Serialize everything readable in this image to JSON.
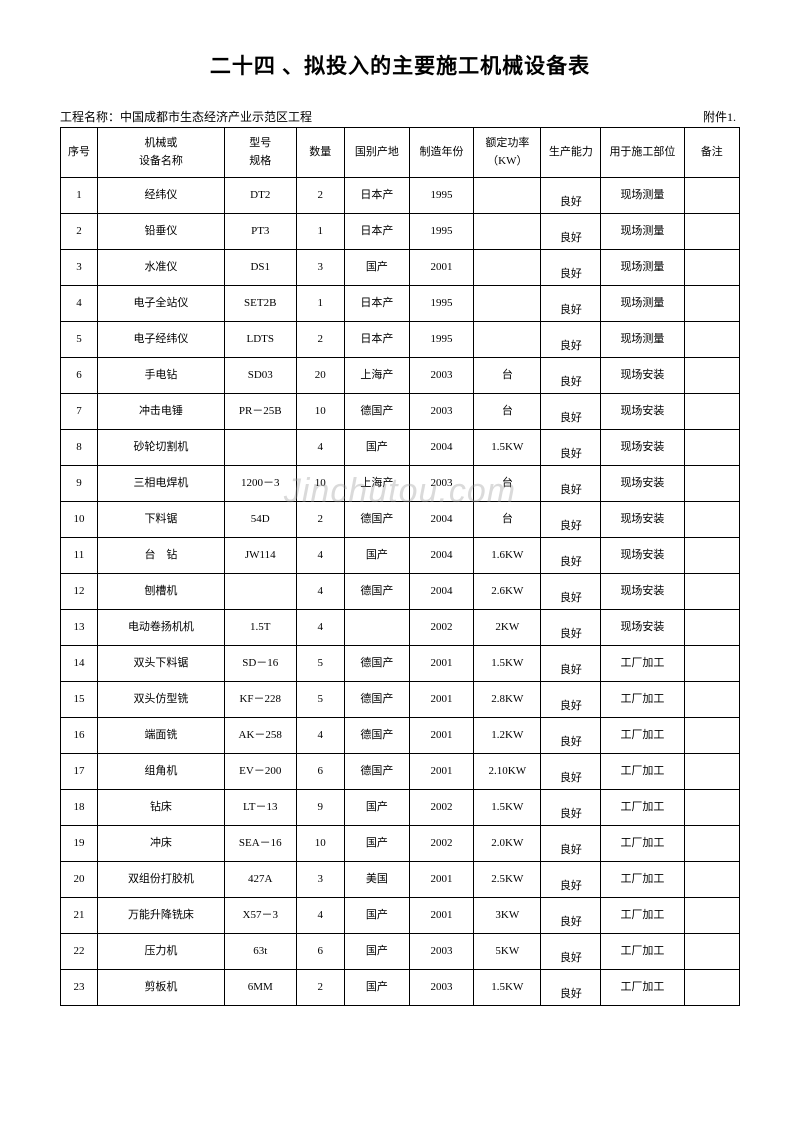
{
  "title": "二十四 、拟投入的主要施工机械设备表",
  "project_label": "工程名称：中国成都市生态经济产业示范区工程",
  "appendix": "附件1.",
  "watermark": "Jinchutou.com",
  "columns": {
    "seq": "序号",
    "name_l1": "机械或",
    "name_l2": "设备名称",
    "model_l1": "型号",
    "model_l2": "规格",
    "qty": "数量",
    "origin": "国别产地",
    "year": "制造年份",
    "power_l1": "额定功率",
    "power_l2": "（KW）",
    "capacity": "生产能力",
    "use": "用于施工部位",
    "note": "备注"
  },
  "rows": [
    {
      "seq": "1",
      "name": "经纬仪",
      "model": "DT2",
      "qty": "2",
      "origin": "日本产",
      "year": "1995",
      "power": "",
      "cap": "良好",
      "use": "现场测量",
      "note": ""
    },
    {
      "seq": "2",
      "name": "铅垂仪",
      "model": "PT3",
      "qty": "1",
      "origin": "日本产",
      "year": "1995",
      "power": "",
      "cap": "良好",
      "use": "现场测量",
      "note": ""
    },
    {
      "seq": "3",
      "name": "水准仪",
      "model": "DS1",
      "qty": "3",
      "origin": "国产",
      "year": "2001",
      "power": "",
      "cap": "良好",
      "use": "现场测量",
      "note": ""
    },
    {
      "seq": "4",
      "name": "电子全站仪",
      "model": "SET2B",
      "qty": "1",
      "origin": "日本产",
      "year": "1995",
      "power": "",
      "cap": "良好",
      "use": "现场测量",
      "note": ""
    },
    {
      "seq": "5",
      "name": "电子经纬仪",
      "model": "LDTS",
      "qty": "2",
      "origin": "日本产",
      "year": "1995",
      "power": "",
      "cap": "良好",
      "use": "现场测量",
      "note": ""
    },
    {
      "seq": "6",
      "name": "手电钻",
      "model": "SD03",
      "qty": "20",
      "origin": "上海产",
      "year": "2003",
      "power": "台",
      "cap": "良好",
      "use": "现场安装",
      "note": ""
    },
    {
      "seq": "7",
      "name": "冲击电锤",
      "model": "PR－25B",
      "qty": "10",
      "origin": "德国产",
      "year": "2003",
      "power": "台",
      "cap": "良好",
      "use": "现场安装",
      "note": ""
    },
    {
      "seq": "8",
      "name": "砂轮切割机",
      "model": "",
      "qty": "4",
      "origin": "国产",
      "year": "2004",
      "power": "1.5KW",
      "cap": "良好",
      "use": "现场安装",
      "note": ""
    },
    {
      "seq": "9",
      "name": "三相电焊机",
      "model": "1200－3",
      "qty": "10",
      "origin": "上海产",
      "year": "2003",
      "power": "台",
      "cap": "良好",
      "use": "现场安装",
      "note": ""
    },
    {
      "seq": "10",
      "name": "下料锯",
      "model": "54D",
      "qty": "2",
      "origin": "德国产",
      "year": "2004",
      "power": "台",
      "cap": "良好",
      "use": "现场安装",
      "note": ""
    },
    {
      "seq": "11",
      "name": "台　钻",
      "model": "JW114",
      "qty": "4",
      "origin": "国产",
      "year": "2004",
      "power": "1.6KW",
      "cap": "良好",
      "use": "现场安装",
      "note": ""
    },
    {
      "seq": "12",
      "name": "刨槽机",
      "model": "",
      "qty": "4",
      "origin": "德国产",
      "year": "2004",
      "power": "2.6KW",
      "cap": "良好",
      "use": "现场安装",
      "note": ""
    },
    {
      "seq": "13",
      "name": "电动卷扬机机",
      "model": "1.5T",
      "qty": "4",
      "origin": "",
      "year": "2002",
      "power": "2KW",
      "cap": "良好",
      "use": "现场安装",
      "note": ""
    },
    {
      "seq": "14",
      "name": "双头下料锯",
      "model": "SD－16",
      "qty": "5",
      "origin": "德国产",
      "year": "2001",
      "power": "1.5KW",
      "cap": "良好",
      "use": "工厂加工",
      "note": ""
    },
    {
      "seq": "15",
      "name": "双头仿型铣",
      "model": "KF－228",
      "qty": "5",
      "origin": "德国产",
      "year": "2001",
      "power": "2.8KW",
      "cap": "良好",
      "use": "工厂加工",
      "note": ""
    },
    {
      "seq": "16",
      "name": "端面铣",
      "model": "AK－258",
      "qty": "4",
      "origin": "德国产",
      "year": "2001",
      "power": "1.2KW",
      "cap": "良好",
      "use": "工厂加工",
      "note": ""
    },
    {
      "seq": "17",
      "name": "组角机",
      "model": "EV－200",
      "qty": "6",
      "origin": "德国产",
      "year": "2001",
      "power": "2.10KW",
      "cap": "良好",
      "use": "工厂加工",
      "note": ""
    },
    {
      "seq": "18",
      "name": "钻床",
      "model": "LT－13",
      "qty": "9",
      "origin": "国产",
      "year": "2002",
      "power": "1.5KW",
      "cap": "良好",
      "use": "工厂加工",
      "note": ""
    },
    {
      "seq": "19",
      "name": "冲床",
      "model": "SEA－16",
      "qty": "10",
      "origin": "国产",
      "year": "2002",
      "power": "2.0KW",
      "cap": "良好",
      "use": "工厂加工",
      "note": ""
    },
    {
      "seq": "20",
      "name": "双组份打胶机",
      "model": "427A",
      "qty": "3",
      "origin": "美国",
      "year": "2001",
      "power": "2.5KW",
      "cap": "良好",
      "use": "工厂加工",
      "note": ""
    },
    {
      "seq": "21",
      "name": "万能升降铣床",
      "model": "X57－3",
      "qty": "4",
      "origin": "国产",
      "year": "2001",
      "power": "3KW",
      "cap": "良好",
      "use": "工厂加工",
      "note": ""
    },
    {
      "seq": "22",
      "name": "压力机",
      "model": "63t",
      "qty": "6",
      "origin": "国产",
      "year": "2003",
      "power": "5KW",
      "cap": "良好",
      "use": "工厂加工",
      "note": ""
    },
    {
      "seq": "23",
      "name": "剪板机",
      "model": "6MM",
      "qty": "2",
      "origin": "国产",
      "year": "2003",
      "power": "1.5KW",
      "cap": "良好",
      "use": "工厂加工",
      "note": ""
    }
  ]
}
